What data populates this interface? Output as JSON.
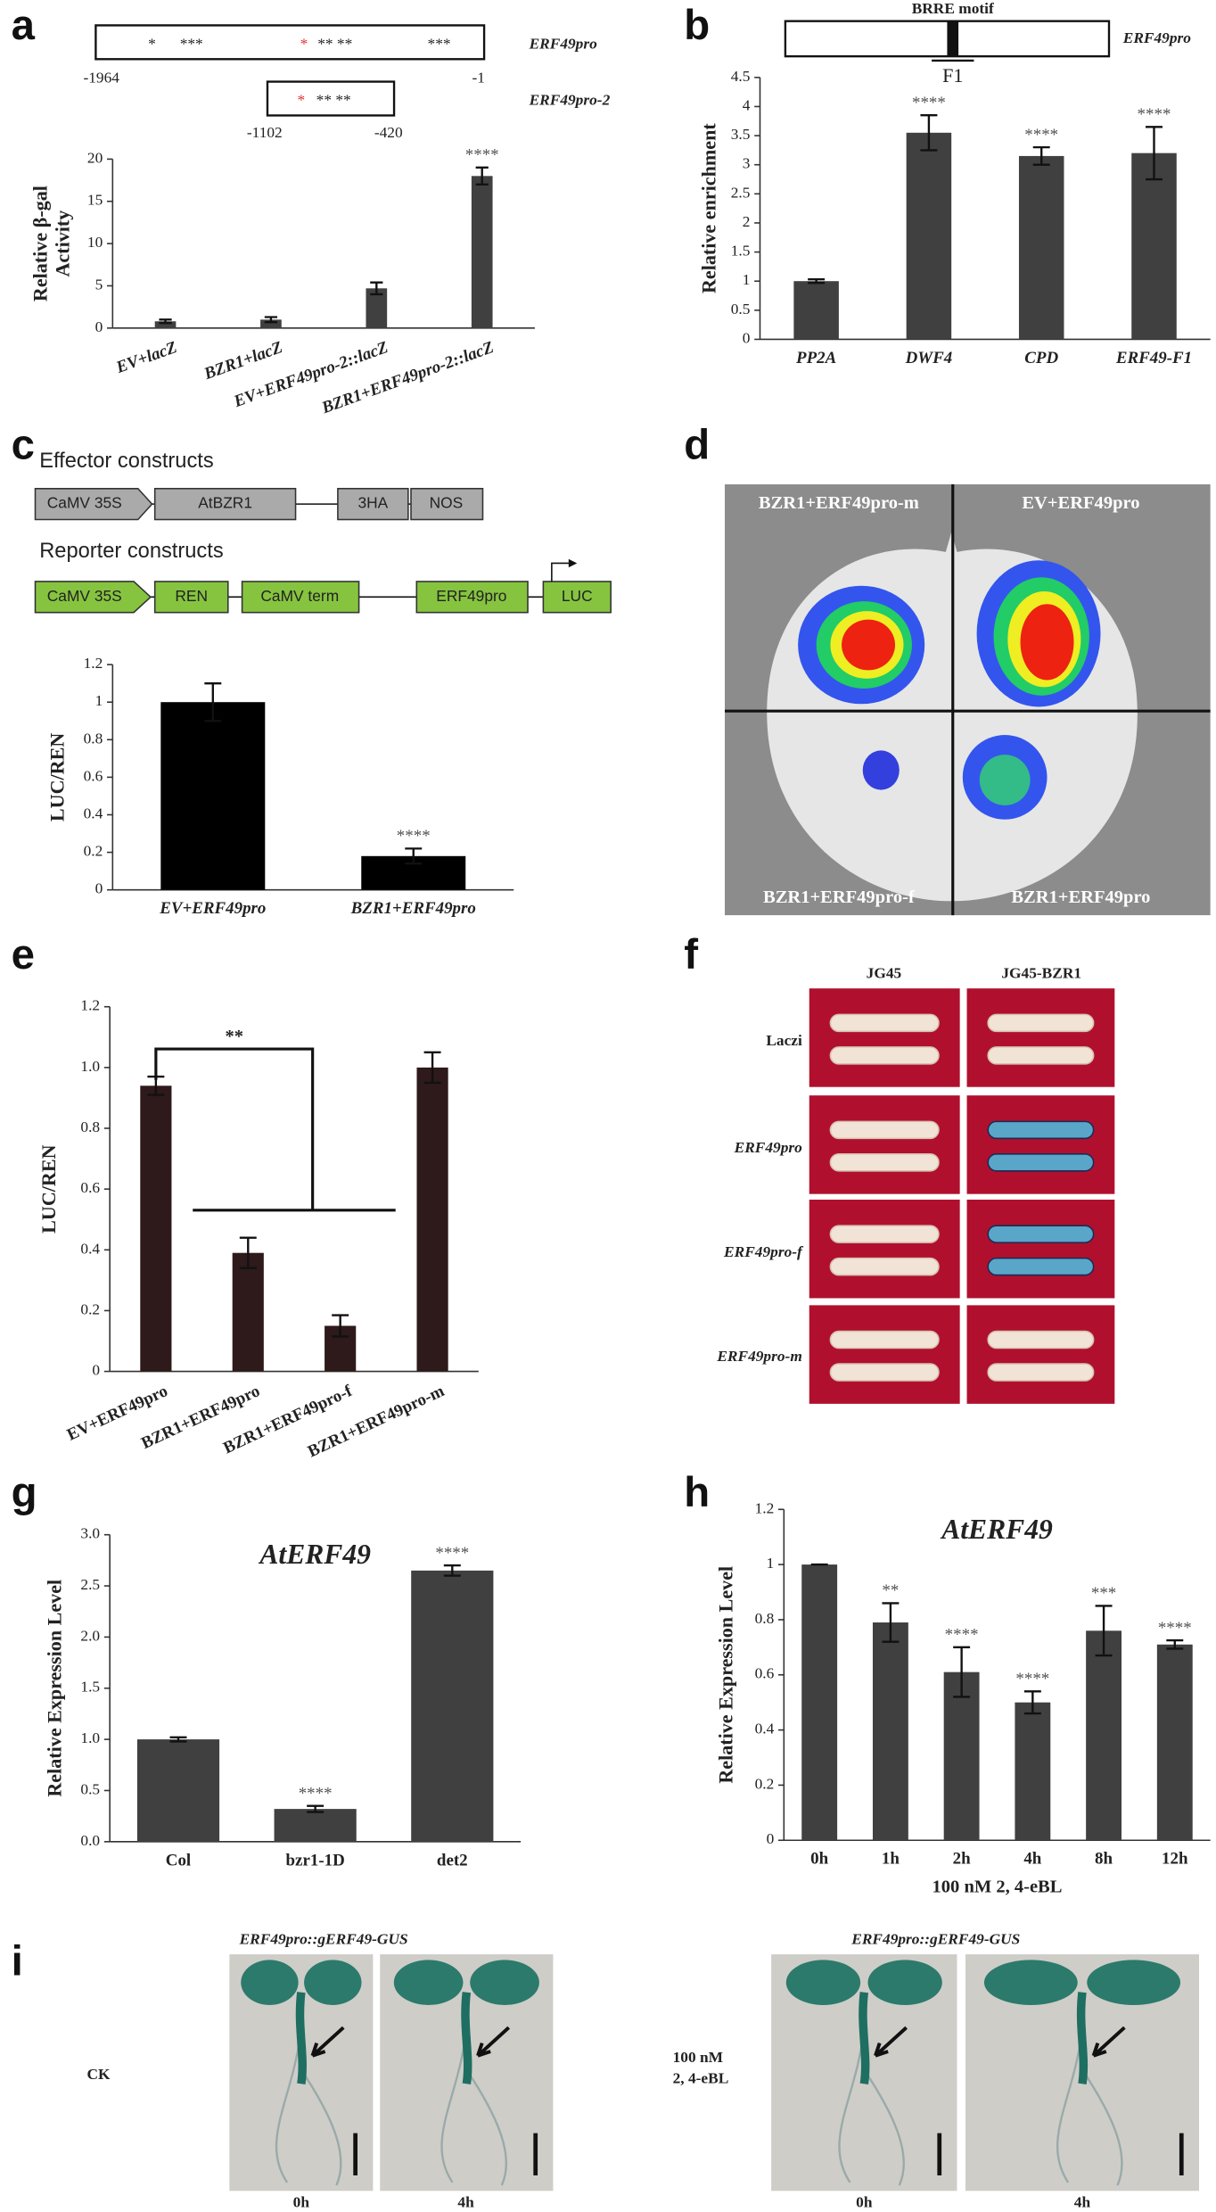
{
  "panel_labels": [
    "a",
    "b",
    "c",
    "d",
    "e",
    "f",
    "g",
    "h",
    "i"
  ],
  "promoter_diagram": {
    "construct_1": "ERF49pro",
    "start_1": "-1964",
    "end_1": "-1",
    "stars_1": [
      "*",
      "***",
      "*",
      "** **",
      "***"
    ],
    "construct_2": "ERF49pro-2",
    "start_2": "-1102",
    "end_2": "-420",
    "stars_2": [
      "*",
      "** **"
    ]
  },
  "chip_diagram": {
    "motif": "BRRE motif",
    "fragment": "F1",
    "construct": "ERF49pro"
  },
  "constructs": {
    "effector_title": "Effector constructs",
    "effector": [
      "CaMV 35S",
      "AtBZR1",
      "3HA",
      "NOS"
    ],
    "reporter_title": "Reporter constructs",
    "reporter": [
      "CaMV 35S",
      "REN",
      "CaMV term",
      "ERF49pro",
      "LUC"
    ]
  },
  "luc_image": {
    "labels": [
      "BZR1+ERF49pro-m",
      "EV+ERF49pro",
      "BZR1+ERF49pro-f",
      "BZR1+ERF49pro"
    ]
  },
  "y1h": {
    "columns": [
      "JG45",
      "JG45-BZR1"
    ],
    "rows": [
      "Laczi",
      "ERF49pro",
      "ERF49pro-f",
      "ERF49pro-m"
    ]
  },
  "gus": {
    "titles": [
      "ERF49pro::gERF49-GUS",
      "ERF49pro::gERF49-GUS"
    ],
    "treatment_1": "CK",
    "treatment_2": [
      "100 nM",
      "2, 4-eBL"
    ],
    "times": [
      "0h",
      "4h",
      "0h",
      "4h"
    ]
  },
  "chart_data": [
    {
      "type": "bar",
      "y_label": [
        "Relative β-gal",
        "Activity"
      ],
      "categories": [
        "EV+lacZ",
        "BZR1+lacZ",
        "EV+ERF49pro-2::lacZ",
        "BZR1+ERF49pro-2::lacZ"
      ],
      "values": [
        0.8,
        1.0,
        4.7,
        18
      ],
      "errors": [
        0.2,
        0.3,
        0.7,
        1.0
      ],
      "significance": [
        null,
        null,
        null,
        "****"
      ],
      "color": "#404040",
      "ylim": [
        0,
        20
      ],
      "yticks": [
        0,
        5,
        10,
        15,
        20
      ]
    },
    {
      "type": "bar",
      "y_label": "Relative enrichment",
      "categories": [
        "PP2A",
        "DWF4",
        "CPD",
        "ERF49-F1"
      ],
      "values": [
        1.0,
        3.55,
        3.15,
        3.2
      ],
      "errors": [
        0.03,
        0.3,
        0.15,
        0.45
      ],
      "significance": [
        null,
        "****",
        "****",
        "****"
      ],
      "color": "#404040",
      "ylim": [
        0,
        4.5
      ],
      "yticks": [
        0,
        0.5,
        1,
        1.5,
        2,
        2.5,
        3,
        3.5,
        4,
        4.5
      ]
    },
    {
      "type": "bar",
      "y_label": "LUC/REN",
      "categories": [
        "EV+ERF49pro",
        "BZR1+ERF49pro"
      ],
      "values": [
        1.0,
        0.18
      ],
      "errors": [
        0.1,
        0.04
      ],
      "significance": [
        null,
        "****"
      ],
      "color": "#000000",
      "ylim": [
        0,
        1.2
      ],
      "yticks": [
        0,
        0.2,
        0.4,
        0.6,
        0.8,
        1,
        1.2
      ]
    },
    {
      "type": "bar",
      "y_label": "LUC/REN",
      "categories": [
        "EV+ERF49pro",
        "BZR1+ERF49pro",
        "BZR1+ERF49pro-f",
        "BZR1+ERF49pro-m"
      ],
      "values": [
        0.94,
        0.39,
        0.15,
        1.0
      ],
      "errors": [
        0.03,
        0.05,
        0.035,
        0.05
      ],
      "annotation": "**",
      "color": "#2e1a1a",
      "ylim": [
        0,
        1.2
      ],
      "yticks": [
        0,
        {
          "value": 0.2,
          "label": "0.2"
        },
        {
          "value": 0.4,
          "label": "0.4"
        },
        {
          "value": 0.6,
          "label": "0.6"
        },
        {
          "value": 0.8,
          "label": "0.8"
        },
        {
          "value": 1,
          "label": "1.0"
        },
        {
          "value": 1.2,
          "label": "1.2"
        }
      ]
    },
    {
      "type": "bar",
      "title": "AtERF49",
      "y_label": "Relative Expression Level",
      "categories": [
        "Col",
        "bzr1-1D",
        "det2"
      ],
      "values": [
        1.0,
        0.32,
        2.65
      ],
      "errors": [
        0.02,
        0.03,
        0.05
      ],
      "significance": [
        null,
        "****",
        "****"
      ],
      "color": "#404040",
      "ylim": [
        0,
        3
      ],
      "yticks": [
        {
          "value": 0,
          "label": "0.0"
        },
        0.5,
        {
          "value": 1,
          "label": "1.0"
        },
        1.5,
        {
          "value": 2,
          "label": "2.0"
        },
        2.5,
        {
          "value": 3,
          "label": "3.0"
        }
      ]
    },
    {
      "type": "bar",
      "title": "AtERF49",
      "y_label": "Relative Expression Level",
      "x_label": "100 nM 2, 4-eBL",
      "categories": [
        "0h",
        "1h",
        "2h",
        "4h",
        "8h",
        "12h"
      ],
      "values": [
        1.0,
        0.79,
        0.61,
        0.5,
        0.76,
        0.71
      ],
      "errors": [
        0,
        0.07,
        0.09,
        0.04,
        0.09,
        0.015
      ],
      "significance": [
        null,
        "**",
        "****",
        "****",
        "***",
        "****"
      ],
      "color": "#404040",
      "ylim": [
        0,
        1.2
      ],
      "yticks": [
        0,
        0.2,
        0.4,
        0.6,
        0.8,
        1,
        1.2
      ]
    }
  ]
}
